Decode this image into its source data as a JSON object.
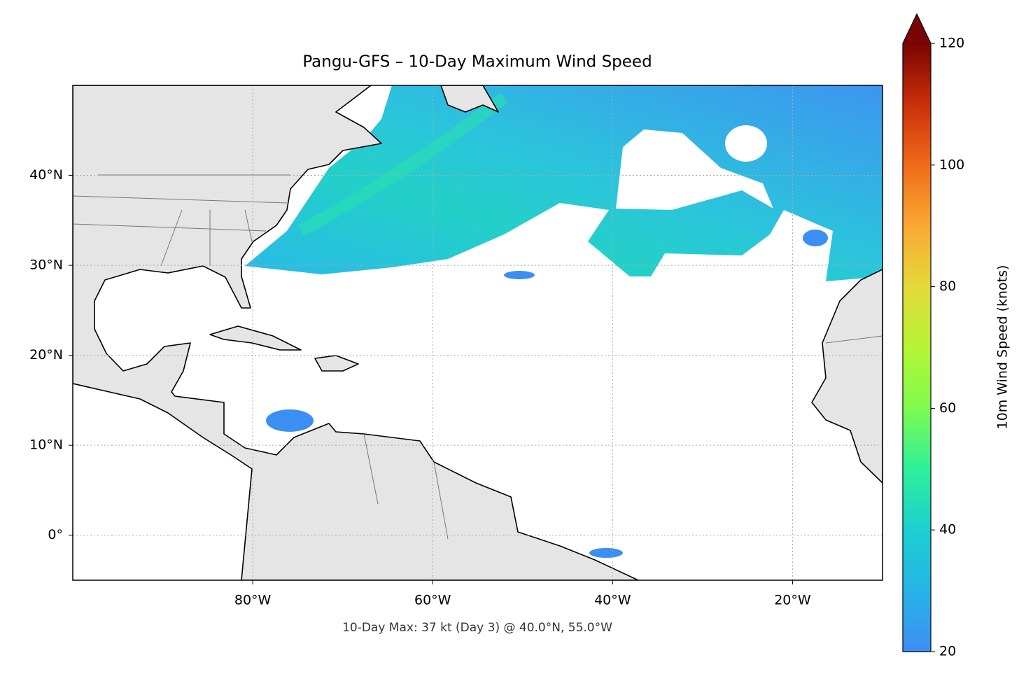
{
  "chart_data": {
    "type": "map",
    "title": "Pangu-GFS – 10-Day Maximum Wind Speed",
    "annotation": "10-Day Max: 37 kt (Day 3) @ 40.0°N, 55.0°W",
    "xlim": [
      -100,
      -10
    ],
    "ylim": [
      -5,
      50
    ],
    "xticks": [
      {
        "value": -80,
        "label": "80°W"
      },
      {
        "value": -60,
        "label": "60°W"
      },
      {
        "value": -40,
        "label": "40°W"
      },
      {
        "value": -20,
        "label": "20°W"
      }
    ],
    "yticks": [
      {
        "value": 0,
        "label": "0°"
      },
      {
        "value": 10,
        "label": "10°N"
      },
      {
        "value": 20,
        "label": "20°N"
      },
      {
        "value": 30,
        "label": "30°N"
      },
      {
        "value": 40,
        "label": "40°N"
      }
    ],
    "grid": true,
    "colorbar": {
      "label": "10m Wind Speed (knots)",
      "lim": [
        20,
        120
      ],
      "ticks": [
        20,
        40,
        60,
        80,
        100,
        120
      ],
      "extend": "max"
    }
  }
}
